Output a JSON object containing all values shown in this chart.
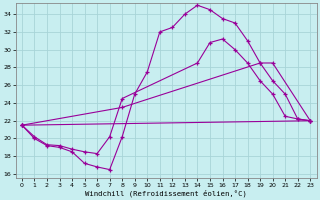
{
  "xlabel": "Windchill (Refroidissement éolien,°C)",
  "xlim": [
    -0.5,
    23.5
  ],
  "ylim": [
    15.5,
    35.2
  ],
  "yticks": [
    16,
    18,
    20,
    22,
    24,
    26,
    28,
    30,
    32,
    34
  ],
  "xticks": [
    0,
    1,
    2,
    3,
    4,
    5,
    6,
    7,
    8,
    9,
    10,
    11,
    12,
    13,
    14,
    15,
    16,
    17,
    18,
    19,
    20,
    21,
    22,
    23
  ],
  "bg_color": "#c8eef0",
  "grid_color": "#a8d4d8",
  "line_color": "#990099",
  "lines": [
    {
      "x": [
        0,
        1,
        2,
        3,
        4,
        5,
        6,
        7,
        8,
        9,
        10,
        11,
        12,
        13,
        14,
        15,
        16,
        17,
        18,
        19,
        20,
        21,
        22,
        23
      ],
      "y": [
        21.5,
        20.0,
        19.2,
        19.0,
        18.5,
        17.2,
        16.8,
        16.5,
        20.2,
        25.0,
        27.5,
        32.0,
        32.5,
        34.0,
        35.0,
        34.5,
        33.5,
        33.0,
        31.0,
        28.5,
        26.5,
        25.0,
        22.2,
        22.0
      ]
    },
    {
      "x": [
        0,
        1,
        2,
        3,
        4,
        5,
        6,
        7,
        8,
        14,
        15,
        16,
        17,
        18,
        19,
        20,
        21,
        22,
        23
      ],
      "y": [
        21.5,
        20.2,
        19.3,
        19.2,
        18.8,
        18.5,
        18.3,
        20.2,
        24.5,
        28.5,
        30.8,
        31.2,
        30.0,
        28.5,
        26.5,
        25.0,
        22.5,
        22.2,
        22.0
      ]
    },
    {
      "x": [
        0,
        8,
        19,
        20,
        23
      ],
      "y": [
        21.5,
        23.5,
        28.5,
        28.5,
        22.0
      ]
    },
    {
      "x": [
        0,
        23
      ],
      "y": [
        21.5,
        22.0
      ]
    }
  ]
}
